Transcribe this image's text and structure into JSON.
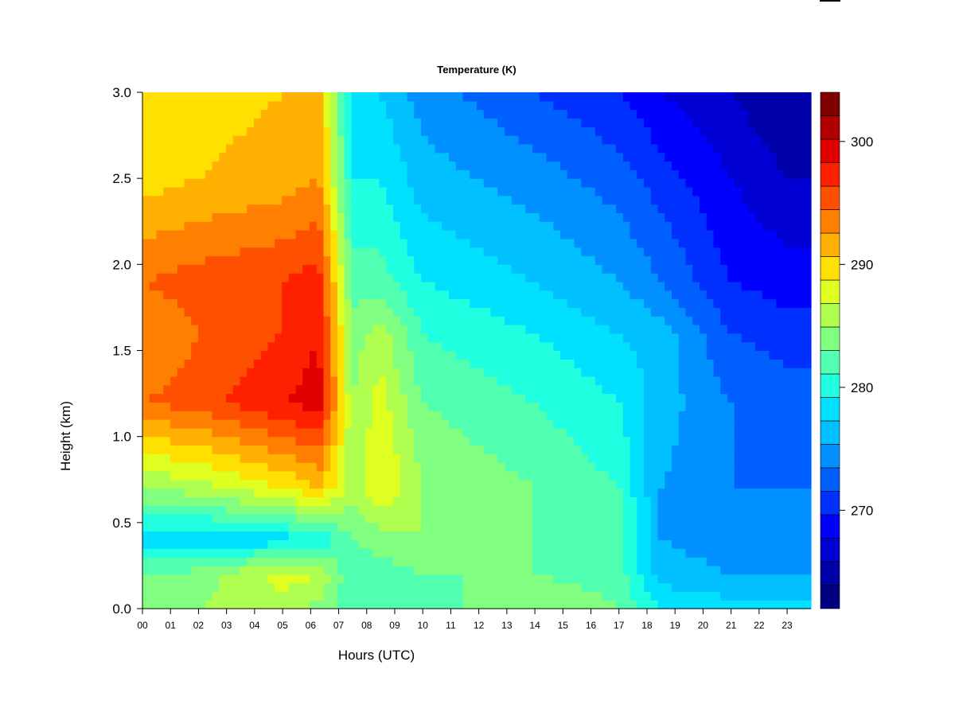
{
  "chart_data": {
    "type": "heatmap",
    "title": "Temperature (K)",
    "xlabel": "Hours (UTC)",
    "ylabel": "Height (km)",
    "x_ticks": [
      "00",
      "01",
      "02",
      "03",
      "04",
      "05",
      "06",
      "07",
      "08",
      "09",
      "10",
      "11",
      "12",
      "13",
      "14",
      "15",
      "16",
      "17",
      "18",
      "19",
      "20",
      "21",
      "22",
      "23"
    ],
    "y_ticks": [
      "0.0",
      "0.5",
      "1.0",
      "1.5",
      "2.0",
      "2.5",
      "3.0"
    ],
    "xlim": [
      0,
      23.85
    ],
    "ylim": [
      0,
      3.0
    ],
    "colorbar": {
      "range": [
        262,
        304
      ],
      "step": 2,
      "tick_values": [
        270,
        280,
        290,
        300
      ],
      "tick_labels": [
        "270",
        "280",
        "290",
        "300"
      ],
      "colors": [
        "#000080",
        "#0000AA",
        "#0000D4",
        "#0000FF",
        "#0030FF",
        "#0060FF",
        "#0090FF",
        "#00C0FF",
        "#00E0FF",
        "#20FFDF",
        "#50FFAF",
        "#80FF80",
        "#AFFF50",
        "#DFFF20",
        "#FFE000",
        "#FFB000",
        "#FF8000",
        "#FF5000",
        "#FF2000",
        "#E00000",
        "#B00000",
        "#800000"
      ]
    },
    "grid": false,
    "legend": "colorbar-right",
    "series": [
      {
        "time_h": 0,
        "temp_k_at_height": [
          [
            0,
            285
          ],
          [
            0.2,
            284
          ],
          [
            0.4,
            279
          ],
          [
            0.7,
            286
          ],
          [
            1.2,
            296
          ],
          [
            1.6,
            294
          ],
          [
            1.9,
            296
          ],
          [
            2.5,
            291
          ],
          [
            3.0,
            290
          ]
        ]
      },
      {
        "time_h": 2,
        "temp_k_at_height": [
          [
            0,
            286
          ],
          [
            0.2,
            285
          ],
          [
            0.4,
            278
          ],
          [
            0.7,
            287
          ],
          [
            1.2,
            297
          ],
          [
            1.6,
            296
          ],
          [
            1.9,
            297
          ],
          [
            2.5,
            292
          ],
          [
            3.0,
            291
          ]
        ]
      },
      {
        "time_h": 5,
        "temp_k_at_height": [
          [
            0,
            287
          ],
          [
            0.2,
            289
          ],
          [
            0.4,
            279
          ],
          [
            0.7,
            290
          ],
          [
            1.2,
            300
          ],
          [
            1.6,
            298
          ],
          [
            1.9,
            298
          ],
          [
            2.5,
            293
          ],
          [
            3.0,
            292
          ]
        ]
      },
      {
        "time_h": 6.3,
        "temp_k_at_height": [
          [
            0,
            285
          ],
          [
            0.2,
            288
          ],
          [
            0.4,
            280
          ],
          [
            0.7,
            292
          ],
          [
            1.2,
            301
          ],
          [
            1.6,
            300
          ],
          [
            1.9,
            299
          ],
          [
            2.5,
            294
          ],
          [
            3.0,
            293
          ]
        ]
      },
      {
        "time_h": 7.5,
        "temp_k_at_height": [
          [
            0,
            283
          ],
          [
            0.2,
            282
          ],
          [
            0.4,
            284
          ],
          [
            0.7,
            287
          ],
          [
            1.2,
            286
          ],
          [
            1.6,
            285
          ],
          [
            1.9,
            283
          ],
          [
            2.5,
            280
          ],
          [
            3.0,
            278
          ]
        ]
      },
      {
        "time_h": 8.5,
        "temp_k_at_height": [
          [
            0,
            283
          ],
          [
            0.2,
            283
          ],
          [
            0.4,
            285
          ],
          [
            0.7,
            290
          ],
          [
            1.2,
            289
          ],
          [
            1.6,
            287
          ],
          [
            1.9,
            283
          ],
          [
            2.5,
            280
          ],
          [
            3.0,
            278
          ]
        ]
      },
      {
        "time_h": 10,
        "temp_k_at_height": [
          [
            0,
            283
          ],
          [
            0.2,
            284
          ],
          [
            0.4,
            286
          ],
          [
            0.7,
            286
          ],
          [
            1.2,
            284
          ],
          [
            1.6,
            282
          ],
          [
            1.9,
            280
          ],
          [
            2.5,
            277
          ],
          [
            3.0,
            275
          ]
        ]
      },
      {
        "time_h": 14,
        "temp_k_at_height": [
          [
            0,
            286
          ],
          [
            0.2,
            284
          ],
          [
            0.4,
            284
          ],
          [
            0.7,
            284
          ],
          [
            1.2,
            282
          ],
          [
            1.6,
            280
          ],
          [
            1.9,
            278
          ],
          [
            2.5,
            275
          ],
          [
            3.0,
            272
          ]
        ]
      },
      {
        "time_h": 17,
        "temp_k_at_height": [
          [
            0,
            284
          ],
          [
            0.2,
            283
          ],
          [
            0.4,
            283
          ],
          [
            0.7,
            282
          ],
          [
            1.2,
            280
          ],
          [
            1.6,
            278
          ],
          [
            1.9,
            276
          ],
          [
            2.5,
            273
          ],
          [
            3.0,
            270
          ]
        ]
      },
      {
        "time_h": 18.5,
        "temp_k_at_height": [
          [
            0,
            280
          ],
          [
            0.2,
            277
          ],
          [
            0.4,
            276
          ],
          [
            0.7,
            276
          ],
          [
            1.2,
            277
          ],
          [
            1.6,
            277
          ],
          [
            1.9,
            274
          ],
          [
            2.5,
            271
          ],
          [
            3.0,
            268
          ]
        ]
      },
      {
        "time_h": 21,
        "temp_k_at_height": [
          [
            0,
            279
          ],
          [
            0.2,
            276
          ],
          [
            0.4,
            275
          ],
          [
            0.7,
            274
          ],
          [
            1.2,
            274
          ],
          [
            1.6,
            272
          ],
          [
            1.9,
            270
          ],
          [
            2.5,
            268
          ],
          [
            3.0,
            266
          ]
        ]
      },
      {
        "time_h": 23,
        "temp_k_at_height": [
          [
            0,
            279
          ],
          [
            0.2,
            276
          ],
          [
            0.4,
            275
          ],
          [
            0.7,
            274
          ],
          [
            1.2,
            273
          ],
          [
            1.6,
            271
          ],
          [
            1.9,
            269
          ],
          [
            2.5,
            266
          ],
          [
            3.0,
            264
          ]
        ]
      }
    ]
  }
}
